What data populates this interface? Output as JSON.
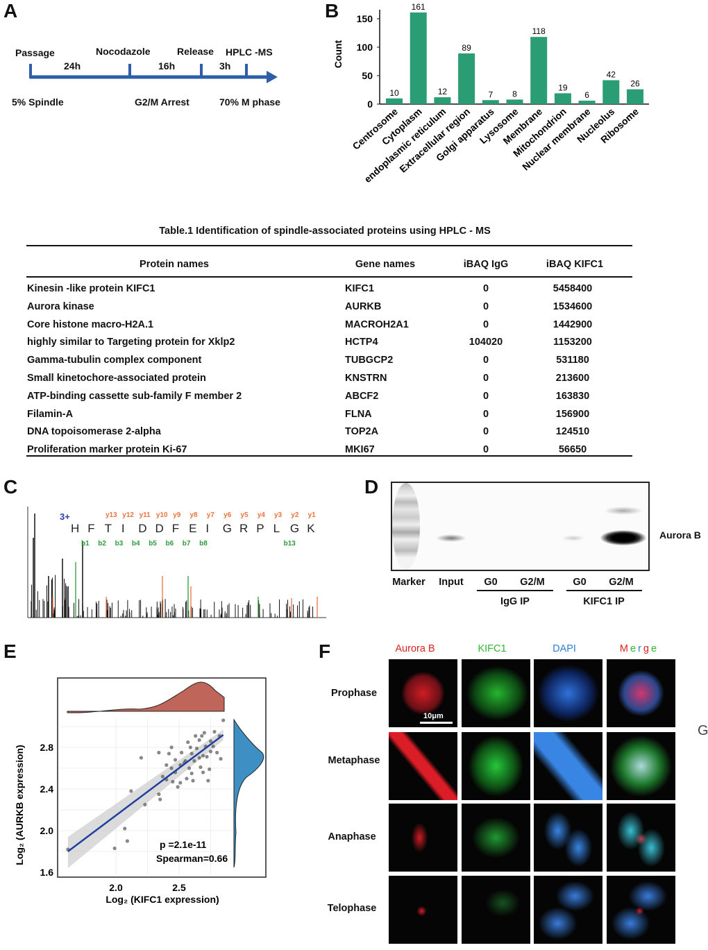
{
  "panels": {
    "a": "A",
    "b": "B",
    "c": "C",
    "d": "D",
    "e": "E",
    "f": "F",
    "g_partial": "G"
  },
  "timeline": {
    "steps": [
      "Passage",
      "Nocodazole",
      "Release",
      "HPLC -MS"
    ],
    "durations": [
      "24h",
      "16h",
      "3h"
    ],
    "states": [
      "5% Spindle",
      "G2/M Arrest",
      "70% M phase"
    ],
    "arrow_color": "#2f5ea8"
  },
  "table": {
    "title": "Table.1 Identification of spindle-associated proteins using HPLC - MS",
    "headers": [
      "Protein names",
      "Gene names",
      "iBAQ IgG",
      "iBAQ KIFC1"
    ],
    "rows": [
      [
        "Kinesin -like protein KIFC1",
        "KIFC1",
        "0",
        "5458400"
      ],
      [
        "Aurora kinase",
        "AURKB",
        "0",
        "1534600"
      ],
      [
        "Core histone macro-H2A.1",
        "MACROH2A1",
        "0",
        "1442900"
      ],
      [
        "highly similar to Targeting protein for Xklp2",
        "HCTP4",
        "104020",
        "1153200"
      ],
      [
        "Gamma-tubulin complex component",
        "TUBGCP2",
        "0",
        "531180"
      ],
      [
        "Small kinetochore-associated protein",
        "KNSTRN",
        "0",
        "213600"
      ],
      [
        "ATP-binding cassette sub-family F member 2",
        "ABCF2",
        "0",
        "163830"
      ],
      [
        "Filamin-A",
        "FLNA",
        "0",
        "156900"
      ],
      [
        "DNA topoisomerase 2-alpha",
        "TOP2A",
        "0",
        "124510"
      ],
      [
        "Proliferation marker protein Ki-67",
        "MKI67",
        "0",
        "56650"
      ]
    ]
  },
  "spectrum": {
    "charge": "3+",
    "sequence": [
      "H",
      "F",
      "T",
      "I",
      "D",
      "D",
      "F",
      "E",
      "I",
      "G",
      "R",
      "P",
      "L",
      "G",
      "K"
    ],
    "y_ions": [
      "y13",
      "y12",
      "y11",
      "y10",
      "y9",
      "y8",
      "y7",
      "y6",
      "y5",
      "y4",
      "y3",
      "y2",
      "y1"
    ],
    "b_ions": [
      "b1",
      "b2",
      "b3",
      "b4",
      "b5",
      "b6",
      "b7",
      "b8",
      "b13"
    ],
    "y_color": "#e8743b",
    "b_color": "#2e9a3a"
  },
  "blot": {
    "lanes": [
      "Marker",
      "Input",
      "G0",
      "G2/M",
      "G0",
      "G2/M"
    ],
    "groups": [
      "IgG IP",
      "KIFC1 IP"
    ],
    "target": "Aurora B"
  },
  "microscopy": {
    "channels": [
      {
        "label": "Aurora B",
        "color": "#e02020"
      },
      {
        "label": "KIFC1",
        "color": "#2eb82e"
      },
      {
        "label": "DAPI",
        "color": "#2a7fd4"
      }
    ],
    "merge_letters": [
      {
        "ch": "M",
        "color": "#e02020"
      },
      {
        "ch": "e",
        "color": "#2eb82e"
      },
      {
        "ch": "r",
        "color": "#2a7fd4"
      },
      {
        "ch": "g",
        "color": "#e02020"
      },
      {
        "ch": "e",
        "color": "#2eb82e"
      }
    ],
    "phases": [
      "Prophase",
      "Metaphase",
      "Anaphase",
      "Telophase"
    ],
    "scale_bar": "10μm"
  },
  "chart_data": [
    {
      "type": "bar",
      "title": "",
      "xlabel": "",
      "ylabel": "Count",
      "ylim": [
        0,
        165
      ],
      "yticks": [
        0,
        50,
        100,
        150
      ],
      "categories": [
        "Centrosome",
        "Cytoplasm",
        "endoplasmic reticulum",
        "Extracellular region",
        "Golgi apparatus",
        "Lysosome",
        "Membrane",
        "Mitochondrion",
        "Nuclear membrane",
        "Nucleolus",
        "Ribosome"
      ],
      "values": [
        10,
        161,
        12,
        89,
        7,
        8,
        118,
        19,
        6,
        42,
        26
      ],
      "color": "#2a9d74"
    },
    {
      "type": "scatter",
      "xlabel": "Log₂ (KIFC1 expression)",
      "ylabel": "Log₂ (AURKB expression)",
      "xticks": [
        "2.0",
        "2.5"
      ],
      "yticks": [
        "1.6",
        "2.0",
        "2.4",
        "2.8"
      ],
      "xlim": [
        1.55,
        3.05
      ],
      "ylim": [
        1.6,
        3.1
      ],
      "annotations": [
        "p =2.1e-11",
        "Spearman=0.66"
      ],
      "fit_line": {
        "x": [
          1.62,
          2.85
        ],
        "y": [
          1.8,
          2.92
        ]
      },
      "x_density_color": "#c0655a",
      "y_density_color": "#3d8fc4",
      "points": [
        [
          1.62,
          1.82
        ],
        [
          1.99,
          1.83
        ],
        [
          2.07,
          2.02
        ],
        [
          2.09,
          1.9
        ],
        [
          2.12,
          2.38
        ],
        [
          2.2,
          2.7
        ],
        [
          2.23,
          2.25
        ],
        [
          2.34,
          2.75
        ],
        [
          2.34,
          2.35
        ],
        [
          2.35,
          2.3
        ],
        [
          2.37,
          2.52
        ],
        [
          2.4,
          2.63
        ],
        [
          2.4,
          2.49
        ],
        [
          2.42,
          2.74
        ],
        [
          2.44,
          2.8
        ],
        [
          2.44,
          2.6
        ],
        [
          2.45,
          2.47
        ],
        [
          2.47,
          2.68
        ],
        [
          2.47,
          2.56
        ],
        [
          2.49,
          2.42
        ],
        [
          2.51,
          2.63
        ],
        [
          2.51,
          2.46
        ],
        [
          2.52,
          2.75
        ],
        [
          2.54,
          2.65
        ],
        [
          2.55,
          2.67
        ],
        [
          2.56,
          2.5
        ],
        [
          2.57,
          2.85
        ],
        [
          2.58,
          2.6
        ],
        [
          2.59,
          2.8
        ],
        [
          2.6,
          2.74
        ],
        [
          2.6,
          2.55
        ],
        [
          2.61,
          2.48
        ],
        [
          2.62,
          2.67
        ],
        [
          2.63,
          2.91
        ],
        [
          2.64,
          2.79
        ],
        [
          2.66,
          2.7
        ],
        [
          2.66,
          2.87
        ],
        [
          2.67,
          2.61
        ],
        [
          2.68,
          2.91
        ],
        [
          2.69,
          2.72
        ],
        [
          2.69,
          2.56
        ],
        [
          2.7,
          2.94
        ],
        [
          2.71,
          2.81
        ],
        [
          2.72,
          2.71
        ],
        [
          2.73,
          2.48
        ],
        [
          2.74,
          2.59
        ],
        [
          2.75,
          2.86
        ],
        [
          2.75,
          2.76
        ],
        [
          2.77,
          2.81
        ],
        [
          2.78,
          2.95
        ],
        [
          2.8,
          2.75
        ],
        [
          2.82,
          2.91
        ],
        [
          2.83,
          2.69
        ],
        [
          2.85,
          3.06
        ]
      ]
    }
  ]
}
